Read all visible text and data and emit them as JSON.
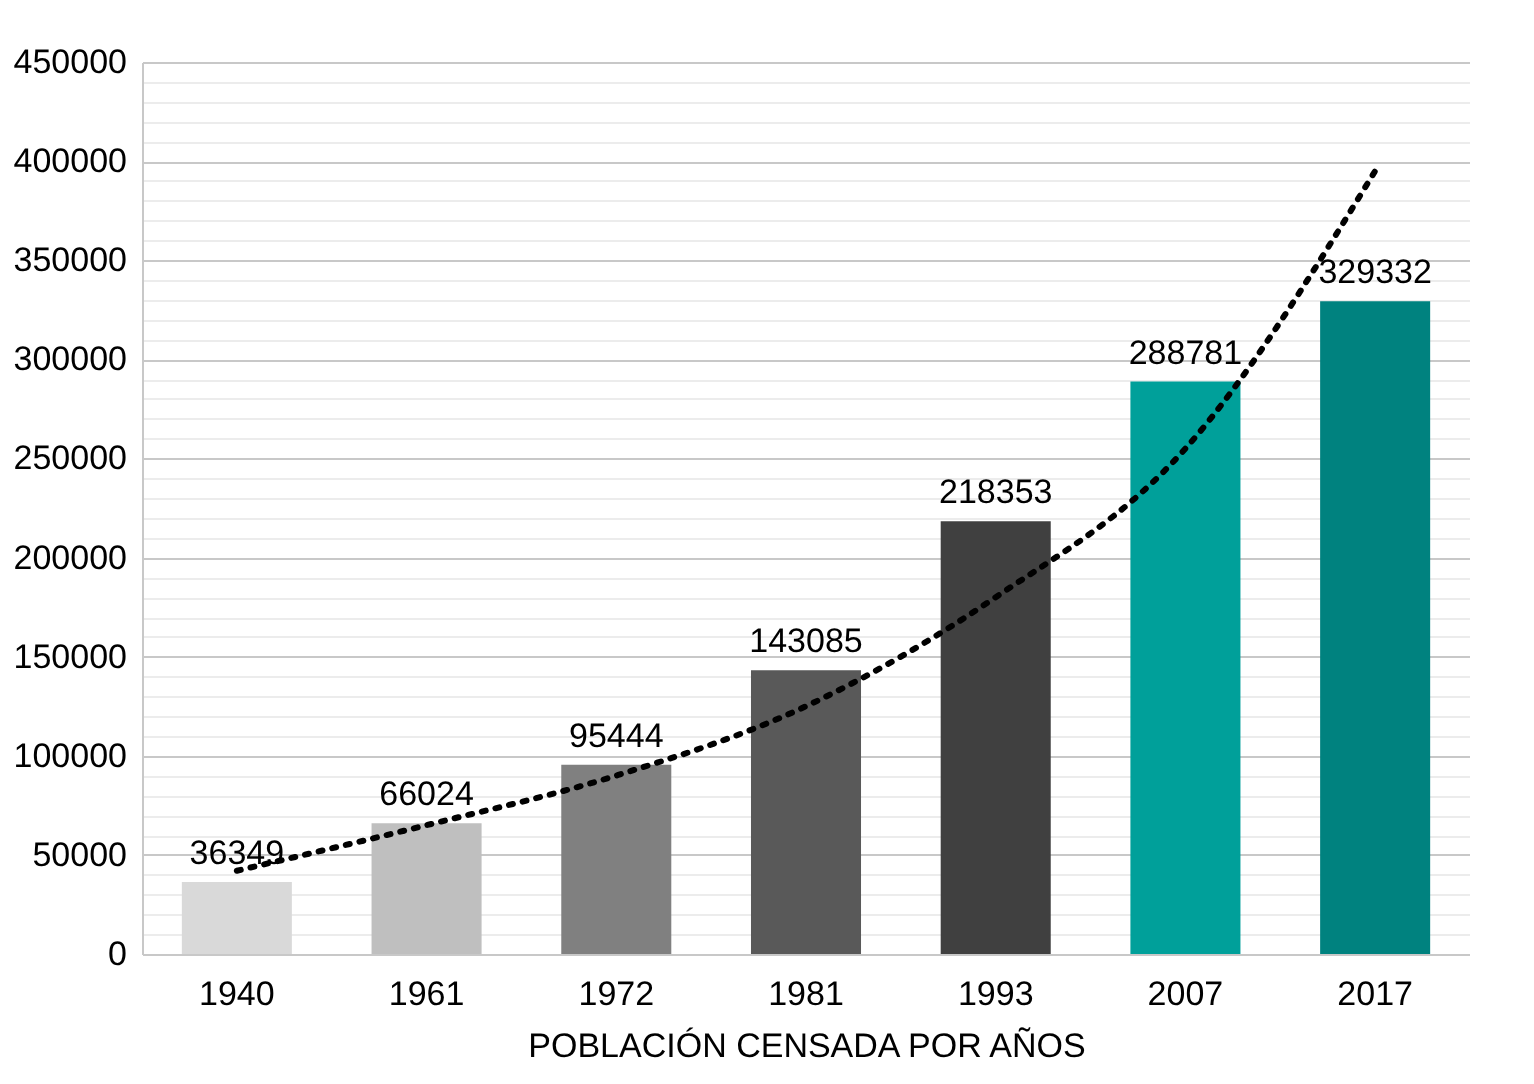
{
  "chart_data": {
    "type": "bar",
    "xlabel": "POBLACIÓN CENSADA POR AÑOS",
    "categories": [
      "1940",
      "1961",
      "1972",
      "1981",
      "1993",
      "2007",
      "2017"
    ],
    "series": [
      {
        "colors": [
          "#d9d9d9",
          "#bfbfbf",
          "#808080",
          "#595959",
          "#404040",
          "#00a09a",
          "#00827f"
        ],
        "values": [
          36349,
          66024,
          95444,
          143085,
          218353,
          288781,
          329332
        ],
        "value_labels": [
          "36349",
          "66024",
          "95444",
          "143085",
          "218353",
          "288781",
          "329332"
        ]
      },
      {
        "type": "line",
        "color": "#000000",
        "line_style": "dotted",
        "values": [
          42000,
          65000,
          90000,
          125000,
          180000,
          255000,
          395000
        ]
      }
    ],
    "ylim": [
      0,
      450000
    ],
    "yticks": [
      0,
      {
        "value": 10000,
        "label": null
      },
      {
        "value": 20000,
        "label": null
      },
      {
        "value": 30000,
        "label": null
      },
      {
        "value": 40000,
        "label": null
      },
      50000,
      {
        "value": 60000,
        "label": null
      },
      {
        "value": 70000,
        "label": null
      },
      {
        "value": 80000,
        "label": null
      },
      {
        "value": 90000,
        "label": null
      },
      100000,
      {
        "value": 110000,
        "label": null
      },
      {
        "value": 120000,
        "label": null
      },
      {
        "value": 130000,
        "label": null
      },
      {
        "value": 140000,
        "label": null
      },
      150000,
      {
        "value": 160000,
        "label": null
      },
      {
        "value": 170000,
        "label": null
      },
      {
        "value": 180000,
        "label": null
      },
      {
        "value": 190000,
        "label": null
      },
      200000,
      {
        "value": 210000,
        "label": null
      },
      {
        "value": 220000,
        "label": null
      },
      {
        "value": 230000,
        "label": null
      },
      {
        "value": 240000,
        "label": null
      },
      250000,
      {
        "value": 260000,
        "label": null
      },
      {
        "value": 270000,
        "label": null
      },
      {
        "value": 280000,
        "label": null
      },
      {
        "value": 290000,
        "label": null
      },
      300000,
      {
        "value": 310000,
        "label": null
      },
      {
        "value": 320000,
        "label": null
      },
      {
        "value": 330000,
        "label": null
      },
      {
        "value": 340000,
        "label": null
      },
      350000,
      {
        "value": 360000,
        "label": null
      },
      {
        "value": 370000,
        "label": null
      },
      {
        "value": 380000,
        "label": null
      },
      {
        "value": 390000,
        "label": null
      },
      400000,
      {
        "value": 410000,
        "label": null
      },
      {
        "value": 420000,
        "label": null
      },
      {
        "value": 430000,
        "label": null
      },
      {
        "value": 440000,
        "label": null
      },
      450000
    ],
    "grid": true
  }
}
